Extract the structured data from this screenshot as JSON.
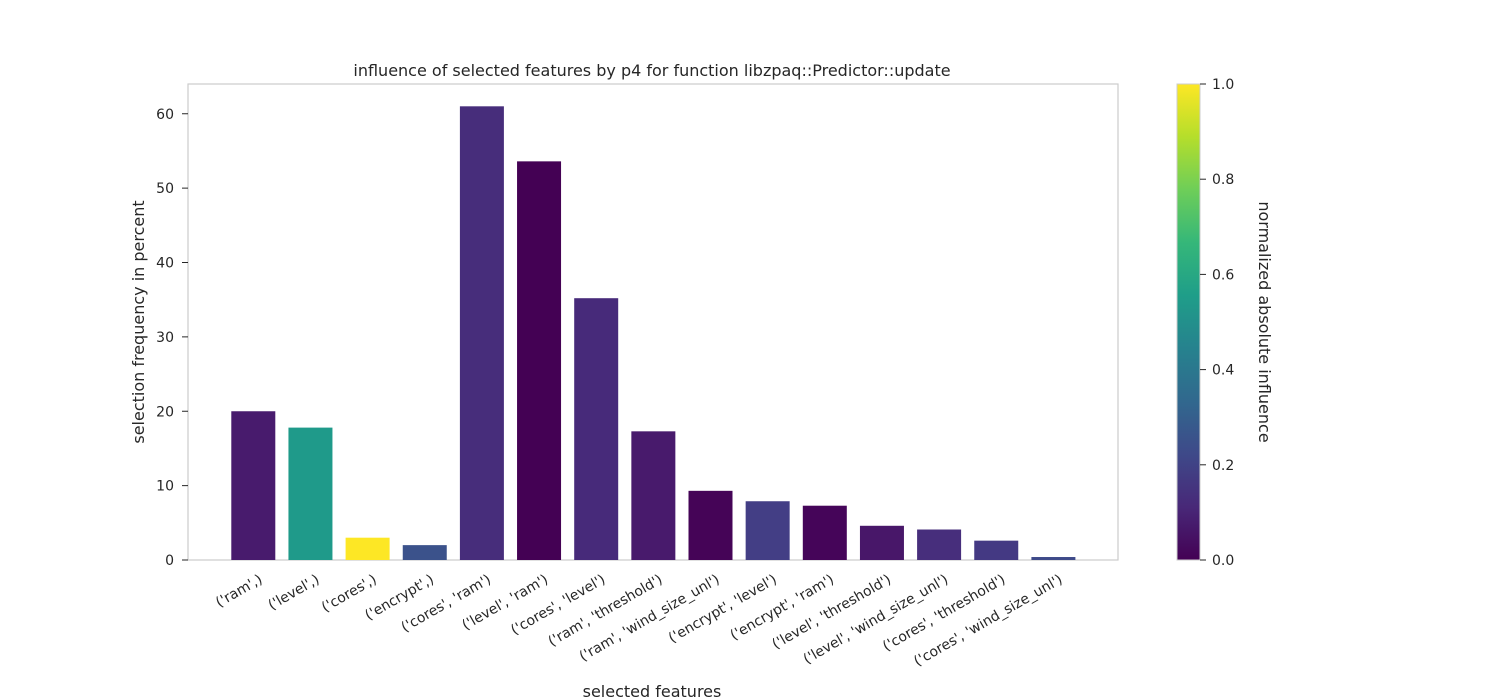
{
  "chart_data": {
    "type": "bar",
    "title": "influence of selected features by p4 for function libzpaq::Predictor::update",
    "xlabel": "selected features",
    "ylabel": "selection frequency in percent",
    "ylim": [
      0,
      64
    ],
    "yticks": [
      0,
      10,
      20,
      30,
      40,
      50,
      60
    ],
    "grid": false,
    "categories": [
      "('ram',)",
      "('level',)",
      "('cores',)",
      "('encrypt',)",
      "('cores', 'ram')",
      "('level', 'ram')",
      "('cores', 'level')",
      "('ram', 'threshold')",
      "('ram', 'wind_size_unl')",
      "('encrypt', 'level')",
      "('encrypt', 'ram')",
      "('level', 'threshold')",
      "('level', 'wind_size_unl')",
      "('cores', 'threshold')",
      "('cores', 'wind_size_unl')"
    ],
    "values": [
      20.0,
      17.8,
      3.0,
      2.0,
      61.0,
      53.6,
      35.2,
      17.3,
      9.3,
      7.9,
      7.3,
      4.6,
      4.1,
      2.6,
      0.4
    ],
    "colors": [
      "#481b6d",
      "#1f9a8a",
      "#fde725",
      "#3b528b",
      "#472d7b",
      "#440154",
      "#472a7a",
      "#481a6c",
      "#450457",
      "#433e85",
      "#450559",
      "#481769",
      "#472e7c",
      "#443983",
      "#3e4a89"
    ],
    "colorbar": {
      "label": "normalized absolute influence",
      "range": [
        0.0,
        1.0
      ],
      "ticks": [
        "0.0",
        "0.2",
        "0.4",
        "0.6",
        "0.8",
        "1.0"
      ],
      "colormap": "viridis",
      "stops": [
        "#440154",
        "#482878",
        "#3e4989",
        "#31688e",
        "#26828e",
        "#1f9e89",
        "#35b779",
        "#6ece58",
        "#b5de2b",
        "#fde725"
      ]
    }
  }
}
